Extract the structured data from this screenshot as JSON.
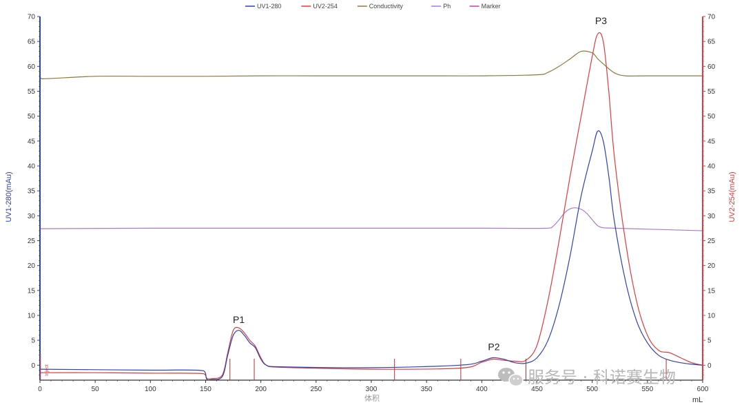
{
  "chart_data": {
    "type": "line",
    "xlabel": "体积",
    "xunit": "mL",
    "ylabel_left": "UV1-280(mAu)",
    "ylabel_right": "UV2-254(mAu)",
    "xlim": [
      0,
      600
    ],
    "ylim_left": [
      -3,
      70
    ],
    "ylim_right": [
      -3,
      70
    ],
    "x_ticks": [
      0,
      50,
      100,
      150,
      200,
      250,
      300,
      350,
      400,
      450,
      500,
      550,
      600
    ],
    "y_ticks": [
      0,
      5,
      10,
      15,
      20,
      25,
      30,
      35,
      40,
      45,
      50,
      55,
      60,
      65,
      70
    ],
    "grid": false,
    "legend_position": "top-center",
    "legend": [
      {
        "name": "UV1-280",
        "color": "#2f3fb8"
      },
      {
        "name": "UV2-254",
        "color": "#e03a3a"
      },
      {
        "name": "Conductivity",
        "color": "#8a7a3a"
      },
      {
        "name": "Ph",
        "color": "#a57ad6"
      },
      {
        "name": "Marker",
        "color": "#c8409a"
      }
    ],
    "series": [
      {
        "name": "UV1-280",
        "color": "#2f3fb8",
        "x": [
          0,
          50,
          100,
          148,
          151,
          155,
          165,
          170,
          175,
          180,
          185,
          190,
          195,
          200,
          205,
          215,
          300,
          380,
          400,
          410,
          420,
          430,
          440,
          450,
          460,
          470,
          480,
          490,
          500,
          505,
          510,
          515,
          520,
          530,
          540,
          550,
          560,
          570,
          580,
          590,
          600
        ],
        "y": [
          -0.8,
          -0.9,
          -1.0,
          -1.1,
          -2.8,
          -2.9,
          -2.3,
          2.0,
          6.0,
          7.0,
          6.0,
          4.5,
          3.5,
          1.2,
          0.0,
          -0.3,
          -0.5,
          0.0,
          0.8,
          1.5,
          1.2,
          0.5,
          0.4,
          1.5,
          5.0,
          12.0,
          22.0,
          34.0,
          43.0,
          47.0,
          45.0,
          38.0,
          29.0,
          17.0,
          9.0,
          4.5,
          2.0,
          1.0,
          0.5,
          0.2,
          0.0
        ]
      },
      {
        "name": "UV2-254",
        "color": "#e03a3a",
        "x": [
          0,
          50,
          100,
          148,
          151,
          155,
          165,
          170,
          175,
          180,
          185,
          190,
          195,
          200,
          205,
          215,
          300,
          380,
          400,
          410,
          420,
          430,
          440,
          450,
          460,
          470,
          480,
          490,
          500,
          505,
          510,
          515,
          520,
          530,
          540,
          550,
          560,
          570,
          580,
          590,
          600
        ],
        "y": [
          -1.5,
          -1.5,
          -1.6,
          -1.7,
          -2.6,
          -2.7,
          -2.0,
          2.5,
          7.0,
          7.5,
          6.5,
          5.0,
          3.8,
          1.5,
          0.0,
          -0.4,
          -0.8,
          -0.6,
          0.6,
          1.2,
          1.0,
          0.8,
          1.0,
          4.0,
          13.0,
          25.0,
          38.0,
          50.0,
          62.0,
          66.5,
          65.0,
          55.0,
          42.0,
          25.0,
          13.0,
          6.0,
          3.0,
          2.5,
          1.5,
          0.5,
          0.0
        ]
      },
      {
        "name": "Conductivity",
        "color": "#8a7a3a",
        "x": [
          0,
          2,
          50,
          100,
          150,
          200,
          250,
          300,
          350,
          400,
          450,
          460,
          470,
          480,
          490,
          500,
          505,
          510,
          520,
          530,
          550,
          600
        ],
        "y": [
          58.0,
          57.5,
          58.0,
          58.0,
          58.0,
          58.1,
          58.1,
          58.1,
          58.1,
          58.1,
          58.3,
          58.8,
          60.0,
          61.5,
          63.0,
          62.7,
          61.5,
          60.5,
          58.7,
          58.1,
          58.1,
          58.1
        ]
      },
      {
        "name": "Ph",
        "color": "#a57ad6",
        "x": [
          0,
          100,
          200,
          300,
          400,
          460,
          465,
          470,
          475,
          480,
          485,
          490,
          495,
          500,
          505,
          510,
          520,
          600
        ],
        "y": [
          27.4,
          27.5,
          27.5,
          27.5,
          27.5,
          27.5,
          28.0,
          29.2,
          30.6,
          31.4,
          31.6,
          31.3,
          30.5,
          29.2,
          28.0,
          27.6,
          27.5,
          27.0
        ]
      }
    ],
    "marker_ticks_x": [
      172,
      194,
      321,
      381,
      440,
      567
    ],
    "annotations": [
      {
        "text": "P1",
        "x": 180,
        "y": 8.5
      },
      {
        "text": "P2",
        "x": 411,
        "y": 3.0
      },
      {
        "text": "P3",
        "x": 508,
        "y": 68.5
      }
    ],
    "inject_label": "Inject",
    "watermark": "服务号 · 科诺赛生物"
  }
}
